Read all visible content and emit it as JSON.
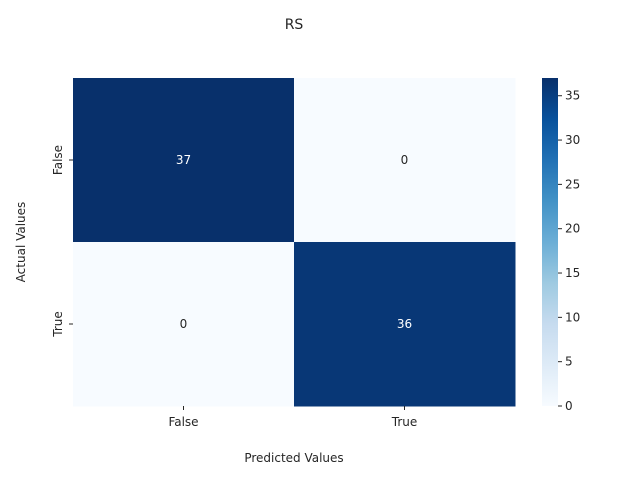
{
  "chart_data": {
    "type": "heatmap",
    "title": "RS",
    "xlabel": "Predicted Values",
    "ylabel": "Actual Values",
    "x_categories": [
      "False",
      "True"
    ],
    "y_categories": [
      "False",
      "True"
    ],
    "values": [
      [
        37,
        0
      ],
      [
        0,
        36
      ]
    ],
    "colorbar": {
      "range": [
        0,
        37
      ],
      "ticks": [
        "0",
        "5",
        "10",
        "15",
        "20",
        "25",
        "30",
        "35"
      ],
      "colormap": "Blues",
      "low_color": "#f7fbff",
      "high_color": "#08306b"
    }
  }
}
